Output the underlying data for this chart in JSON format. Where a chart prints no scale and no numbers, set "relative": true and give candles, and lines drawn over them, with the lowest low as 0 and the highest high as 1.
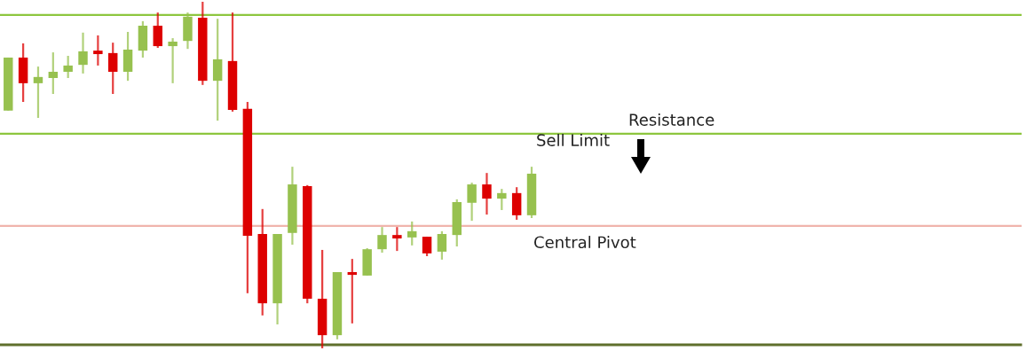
{
  "chart_data": {
    "type": "candlestick",
    "relative": true,
    "categories": [
      null,
      null,
      null,
      null,
      null,
      null,
      null,
      null,
      null,
      null,
      null,
      null,
      null,
      null,
      null,
      null,
      null,
      null,
      null,
      null,
      null,
      null,
      null,
      null,
      null,
      null,
      null,
      null,
      null,
      null,
      null,
      null,
      null,
      null,
      null,
      null
    ],
    "ohlc": [
      [
        0.686,
        0.839,
        0.686,
        0.839
      ],
      [
        0.839,
        0.88,
        0.711,
        0.765
      ],
      [
        0.765,
        0.813,
        0.665,
        0.783
      ],
      [
        0.78,
        0.854,
        0.734,
        0.798
      ],
      [
        0.798,
        0.844,
        0.78,
        0.816
      ],
      [
        0.818,
        0.911,
        0.793,
        0.857
      ],
      [
        0.859,
        0.903,
        0.816,
        0.849
      ],
      [
        0.852,
        0.882,
        0.734,
        0.798
      ],
      [
        0.798,
        0.913,
        0.772,
        0.862
      ],
      [
        0.859,
        0.944,
        0.839,
        0.931
      ],
      [
        0.931,
        0.969,
        0.867,
        0.872
      ],
      [
        0.872,
        0.895,
        0.765,
        0.885
      ],
      [
        0.887,
        0.969,
        0.864,
        0.957
      ],
      [
        0.954,
        1.0,
        0.76,
        0.772
      ],
      [
        0.772,
        0.951,
        0.657,
        0.834
      ],
      [
        0.829,
        0.969,
        0.683,
        0.688
      ],
      [
        0.691,
        0.711,
        0.159,
        0.325
      ],
      [
        0.33,
        0.402,
        0.095,
        0.13
      ],
      [
        0.13,
        0.33,
        0.069,
        0.33
      ],
      [
        0.333,
        0.524,
        0.299,
        0.473
      ],
      [
        0.468,
        0.471,
        0.13,
        0.143
      ],
      [
        0.143,
        0.284,
        0.0,
        0.038
      ],
      [
        0.038,
        0.22,
        0.026,
        0.22
      ],
      [
        0.22,
        0.258,
        0.072,
        0.212
      ],
      [
        0.21,
        0.289,
        0.21,
        0.286
      ],
      [
        0.286,
        0.35,
        0.276,
        0.327
      ],
      [
        0.327,
        0.35,
        0.281,
        0.317
      ],
      [
        0.32,
        0.366,
        0.297,
        0.338
      ],
      [
        0.322,
        0.322,
        0.266,
        0.274
      ],
      [
        0.279,
        0.338,
        0.256,
        0.33
      ],
      [
        0.327,
        0.43,
        0.294,
        0.422
      ],
      [
        0.42,
        0.478,
        0.368,
        0.473
      ],
      [
        0.473,
        0.506,
        0.386,
        0.432
      ],
      [
        0.432,
        0.46,
        0.399,
        0.448
      ],
      [
        0.448,
        0.465,
        0.371,
        0.384
      ],
      [
        0.384,
        0.524,
        0.376,
        0.504
      ]
    ],
    "colors": [
      "#97c14f",
      "#dd0000",
      "#97c14f",
      "#97c14f",
      "#97c14f",
      "#97c14f",
      "#dd0000",
      "#dd0000",
      "#97c14f",
      "#97c14f",
      "#dd0000",
      "#97c14f",
      "#97c14f",
      "#dd0000",
      "#97c14f",
      "#dd0000",
      "#dd0000",
      "#dd0000",
      "#97c14f",
      "#97c14f",
      "#dd0000",
      "#dd0000",
      "#97c14f",
      "#dd0000",
      "#97c14f",
      "#97c14f",
      "#dd0000",
      "#97c14f",
      "#dd0000",
      "#97c14f",
      "#97c14f",
      "#97c14f",
      "#dd0000",
      "#97c14f",
      "#dd0000",
      "#97c14f"
    ],
    "ref_lines": [
      {
        "axis": "y",
        "value": 0.962,
        "label": null,
        "color": "#8dc63f"
      },
      {
        "axis": "y",
        "value": 0.619,
        "label": "Resistance",
        "color": "#8dc63f"
      },
      {
        "axis": "y",
        "value": 0.353,
        "label": "Central Pivot",
        "color": "#f0b4ac"
      },
      {
        "axis": "y",
        "value": 0.01,
        "label": null,
        "color": "#5f6f2c"
      }
    ],
    "annotations": [
      "Sell Limit"
    ],
    "grid": false
  }
}
